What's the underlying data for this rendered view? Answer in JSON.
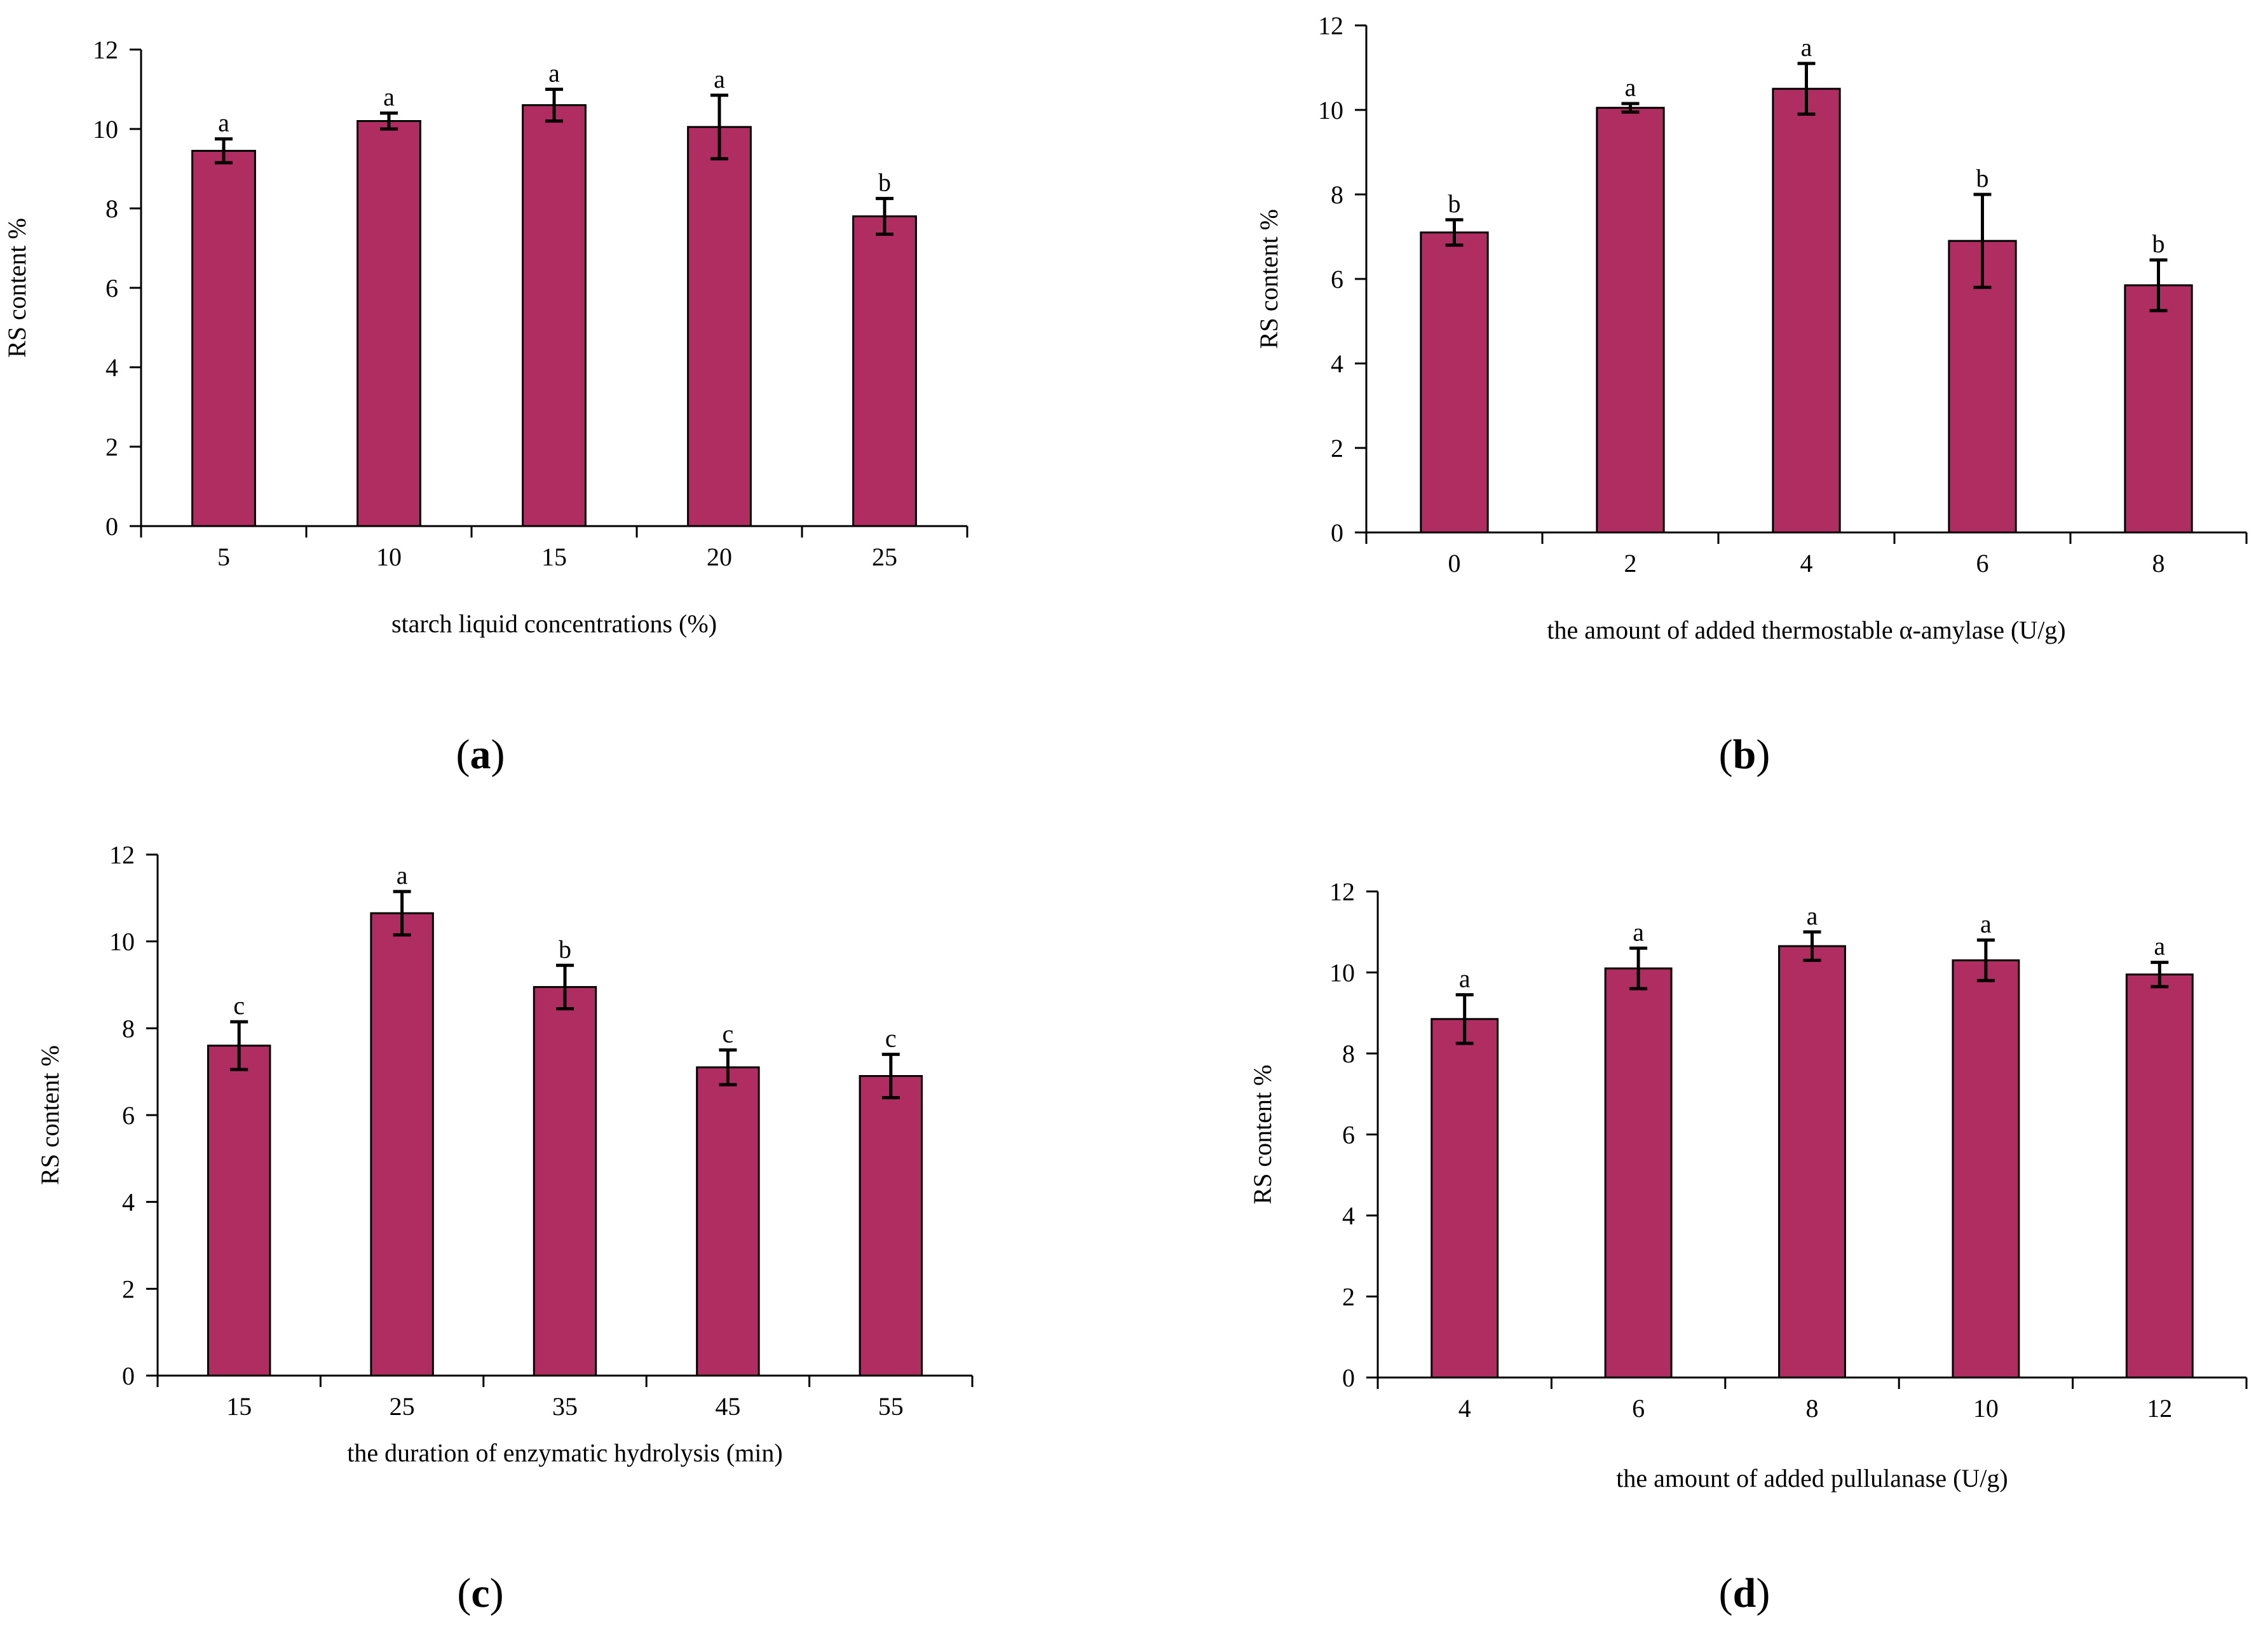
{
  "colors": {
    "bar": "#b02d62",
    "axis": "#000000",
    "text": "#000000"
  },
  "chart_data": [
    {
      "type": "bar",
      "panel_label": "a",
      "title": "",
      "xlabel": "starch liquid concentrations (%)",
      "ylabel": "RS content %",
      "categories": [
        "5",
        "10",
        "15",
        "20",
        "25"
      ],
      "values": [
        9.45,
        10.2,
        10.6,
        10.05,
        7.8
      ],
      "errors": [
        0.3,
        0.2,
        0.4,
        0.8,
        0.45
      ],
      "letters": [
        "a",
        "a",
        "a",
        "a",
        "b"
      ],
      "ylim": [
        0,
        12
      ],
      "yticks": [
        "0",
        "2",
        "4",
        "6",
        "8",
        "10",
        "12"
      ],
      "grid": false
    },
    {
      "type": "bar",
      "panel_label": "b",
      "title": "",
      "xlabel": "the amount of added thermostable α-amylase (U/g)",
      "ylabel": "RS content %",
      "categories": [
        "0",
        "2",
        "4",
        "6",
        "8"
      ],
      "values": [
        7.1,
        10.05,
        10.5,
        6.9,
        5.85
      ],
      "errors": [
        0.3,
        0.1,
        0.6,
        1.1,
        0.6
      ],
      "letters": [
        "b",
        "a",
        "a",
        "b",
        "b"
      ],
      "ylim": [
        0,
        12
      ],
      "yticks": [
        "0",
        "2",
        "4",
        "6",
        "8",
        "10",
        "12"
      ],
      "grid": false
    },
    {
      "type": "bar",
      "panel_label": "c",
      "title": "",
      "xlabel": "the duration of enzymatic hydrolysis (min)",
      "ylabel": "RS content %",
      "categories": [
        "15",
        "25",
        "35",
        "45",
        "55"
      ],
      "values": [
        7.6,
        10.65,
        8.95,
        7.1,
        6.9
      ],
      "errors": [
        0.55,
        0.5,
        0.5,
        0.4,
        0.5
      ],
      "letters": [
        "c",
        "a",
        "b",
        "c",
        "c"
      ],
      "ylim": [
        0,
        12
      ],
      "yticks": [
        "0",
        "2",
        "4",
        "6",
        "8",
        "10",
        "12"
      ],
      "grid": false
    },
    {
      "type": "bar",
      "panel_label": "d",
      "title": "",
      "xlabel": "the amount of added pullulanase (U/g)",
      "ylabel": "RS content %",
      "categories": [
        "4",
        "6",
        "8",
        "10",
        "12"
      ],
      "values": [
        8.85,
        10.1,
        10.65,
        10.3,
        9.95
      ],
      "errors": [
        0.6,
        0.5,
        0.35,
        0.5,
        0.3
      ],
      "letters": [
        "a",
        "a",
        "a",
        "a",
        "a"
      ],
      "ylim": [
        0,
        12
      ],
      "yticks": [
        "0",
        "2",
        "4",
        "6",
        "8",
        "10",
        "12"
      ],
      "grid": false
    }
  ]
}
